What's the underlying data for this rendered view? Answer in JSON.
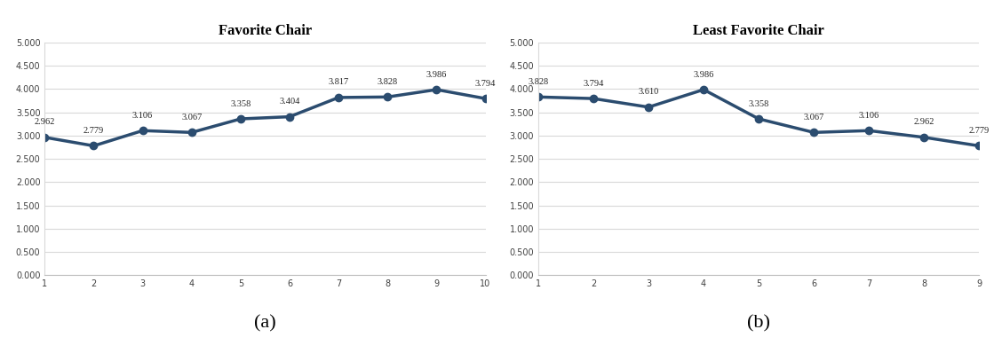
{
  "chart_data": [
    {
      "type": "line",
      "title": "Favorite Chair",
      "label": "(a)",
      "x": [
        1,
        2,
        3,
        4,
        5,
        6,
        7,
        8,
        9,
        10
      ],
      "values": [
        2.962,
        2.779,
        3.106,
        3.067,
        3.358,
        3.404,
        3.817,
        3.828,
        3.986,
        3.794
      ],
      "value_labels": [
        "2.962",
        "2.779",
        "3.106",
        "3.067",
        "3.358",
        "3.404",
        "3.817",
        "3.828",
        "3.986",
        "3.794"
      ],
      "data_labels": true,
      "color": "#2b4c6f",
      "marker": "o",
      "line_style": "solid",
      "xlim": [
        1,
        10
      ],
      "xticks": [
        1,
        2,
        3,
        4,
        5,
        6,
        7,
        8,
        9,
        10
      ],
      "ylim": [
        0,
        5
      ],
      "yticks": [
        {
          "value": 0,
          "label": "0.000"
        },
        {
          "value": 0.5,
          "label": "0.500"
        },
        {
          "value": 1,
          "label": "1.000"
        },
        {
          "value": 1.5,
          "label": "1.500"
        },
        {
          "value": 2,
          "label": "2.000"
        },
        {
          "value": 2.5,
          "label": "2.500"
        },
        {
          "value": 3,
          "label": "3.000"
        },
        {
          "value": 3.5,
          "label": "3.500"
        },
        {
          "value": 4,
          "label": "4.000"
        },
        {
          "value": 4.5,
          "label": "4.500"
        },
        {
          "value": 5,
          "label": "5.000"
        }
      ],
      "grid": true
    },
    {
      "type": "line",
      "title": "Least Favorite Chair",
      "label": "(b)",
      "x": [
        1,
        2,
        3,
        4,
        5,
        6,
        7,
        8,
        9
      ],
      "values": [
        3.828,
        3.794,
        3.61,
        3.986,
        3.358,
        3.067,
        3.106,
        2.962,
        2.779
      ],
      "value_labels": [
        "3.828",
        "3.794",
        "3.610",
        "3.986",
        "3.358",
        "3.067",
        "3.106",
        "2.962",
        "2.779"
      ],
      "data_labels": true,
      "color": "#2b4c6f",
      "marker": "o",
      "line_style": "solid",
      "xlim": [
        1,
        9
      ],
      "xticks": [
        1,
        2,
        3,
        4,
        5,
        6,
        7,
        8,
        9
      ],
      "ylim": [
        0,
        5
      ],
      "yticks": [
        {
          "value": 0,
          "label": "0.000"
        },
        {
          "value": 0.5,
          "label": "0.500"
        },
        {
          "value": 1,
          "label": "1.000"
        },
        {
          "value": 1.5,
          "label": "1.500"
        },
        {
          "value": 2,
          "label": "2.000"
        },
        {
          "value": 2.5,
          "label": "2.500"
        },
        {
          "value": 3,
          "label": "3.000"
        },
        {
          "value": 3.5,
          "label": "3.500"
        },
        {
          "value": 4,
          "label": "4.000"
        },
        {
          "value": 4.5,
          "label": "4.500"
        },
        {
          "value": 5,
          "label": "5.000"
        }
      ],
      "grid": true
    }
  ]
}
